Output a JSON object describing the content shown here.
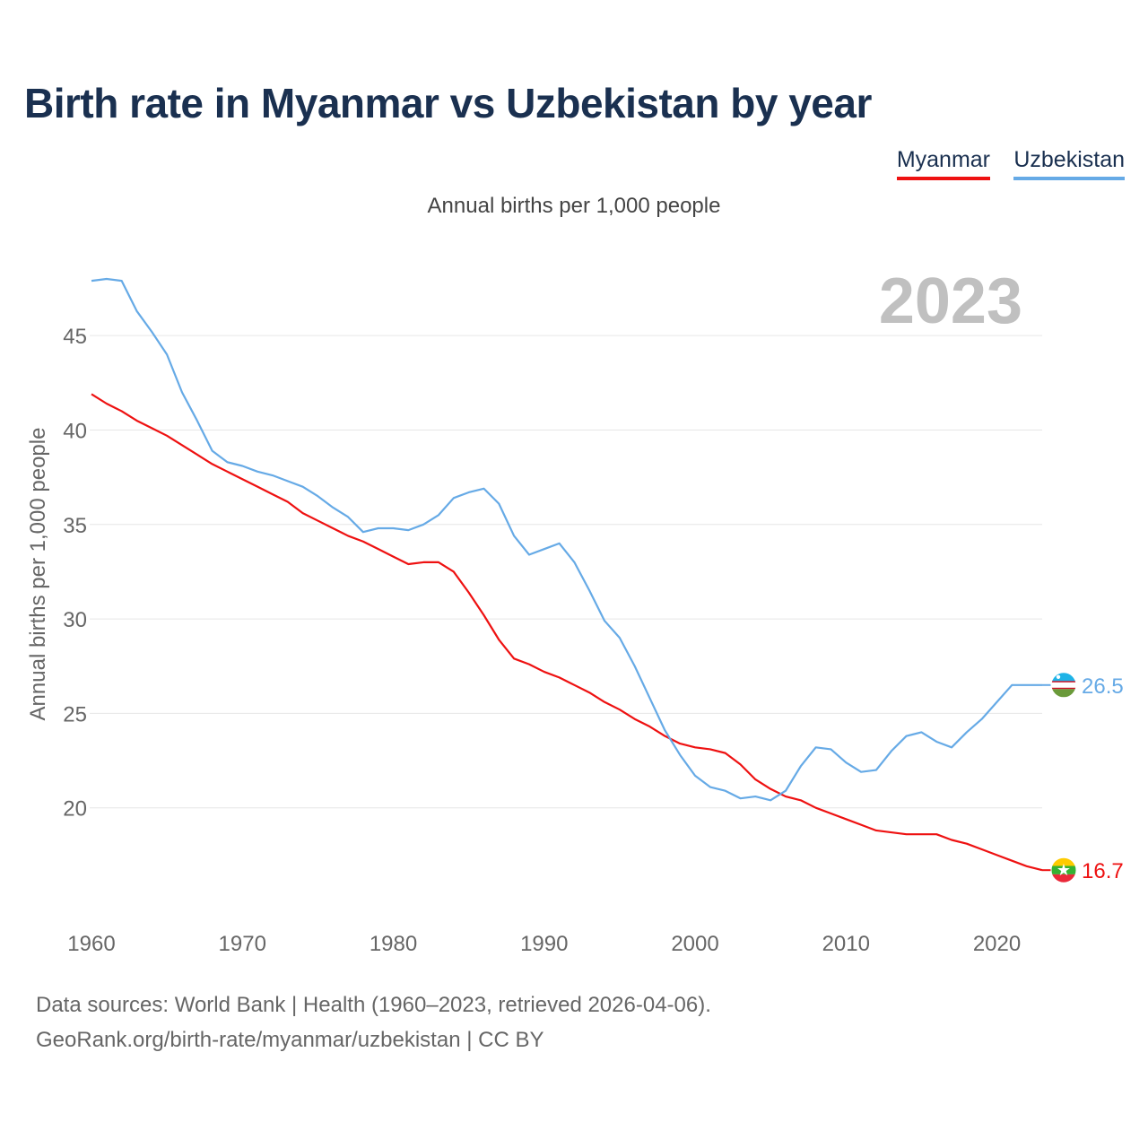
{
  "title": "Birth rate in Myanmar vs Uzbekistan by year",
  "subtitle": "Annual births per 1,000 people",
  "legend": {
    "myanmar": "Myanmar",
    "uzbekistan": "Uzbekistan"
  },
  "source": {
    "line1": "Data sources: World Bank | Health (1960–2023, retrieved 2026-04-06).",
    "line2": "GeoRank.org/birth-rate/myanmar/uzbekistan | CC BY"
  },
  "colors": {
    "myanmar": "#ee1111",
    "uzbekistan": "#66aae6",
    "title": "#1a3050",
    "year": "#c0c0c0"
  },
  "chart_data": {
    "type": "line",
    "title": "Birth rate in Myanmar vs Uzbekistan by year",
    "ylabel": "Annual births per 1,000 people",
    "xlabel": "",
    "year_label": "2023",
    "xlim": [
      1960,
      2023
    ],
    "ylim": [
      15,
      48
    ],
    "x_ticks": [
      "1960",
      "1970",
      "1980",
      "1990",
      "2000",
      "2010",
      "2020"
    ],
    "y_ticks": [
      "20",
      "25",
      "30",
      "35",
      "40",
      "45"
    ],
    "grid": true,
    "x": [
      1960,
      1961,
      1962,
      1963,
      1964,
      1965,
      1966,
      1967,
      1968,
      1969,
      1970,
      1971,
      1972,
      1973,
      1974,
      1975,
      1976,
      1977,
      1978,
      1979,
      1980,
      1981,
      1982,
      1983,
      1984,
      1985,
      1986,
      1987,
      1988,
      1989,
      1990,
      1991,
      1992,
      1993,
      1994,
      1995,
      1996,
      1997,
      1998,
      1999,
      2000,
      2001,
      2002,
      2003,
      2004,
      2005,
      2006,
      2007,
      2008,
      2009,
      2010,
      2011,
      2012,
      2013,
      2014,
      2015,
      2016,
      2017,
      2018,
      2019,
      2020,
      2021,
      2022,
      2023
    ],
    "series": [
      {
        "name": "Myanmar",
        "end_label": "16.7",
        "values": [
          41.9,
          41.4,
          41.0,
          40.5,
          40.1,
          39.7,
          39.2,
          38.7,
          38.2,
          37.8,
          37.4,
          37.0,
          36.6,
          36.2,
          35.6,
          35.2,
          34.8,
          34.4,
          34.1,
          33.7,
          33.3,
          32.9,
          33.0,
          33.0,
          32.5,
          31.4,
          30.2,
          28.9,
          27.9,
          27.6,
          27.2,
          26.9,
          26.5,
          26.1,
          25.6,
          25.2,
          24.7,
          24.3,
          23.8,
          23.4,
          23.2,
          23.1,
          22.9,
          22.3,
          21.5,
          21.0,
          20.6,
          20.4,
          20.0,
          19.7,
          19.4,
          19.1,
          18.8,
          18.7,
          18.6,
          18.6,
          18.6,
          18.3,
          18.1,
          17.8,
          17.5,
          17.2,
          16.9,
          16.7
        ]
      },
      {
        "name": "Uzbekistan",
        "end_label": "26.5",
        "values": [
          47.9,
          48.0,
          47.9,
          46.3,
          45.2,
          44.0,
          42.0,
          40.5,
          38.9,
          38.3,
          38.1,
          37.8,
          37.6,
          37.3,
          37.0,
          36.5,
          35.9,
          35.4,
          34.6,
          34.8,
          34.8,
          34.7,
          35.0,
          35.5,
          36.4,
          36.7,
          36.9,
          36.1,
          34.4,
          33.4,
          33.7,
          34.0,
          33.0,
          31.5,
          29.9,
          29.0,
          27.5,
          25.8,
          24.1,
          22.8,
          21.7,
          21.1,
          20.9,
          20.5,
          20.6,
          20.4,
          20.9,
          22.2,
          23.2,
          23.1,
          22.4,
          21.9,
          22.0,
          23.0,
          23.8,
          24.0,
          23.5,
          23.2,
          24.0,
          24.7,
          25.6,
          26.5,
          26.5,
          26.5
        ]
      }
    ]
  }
}
